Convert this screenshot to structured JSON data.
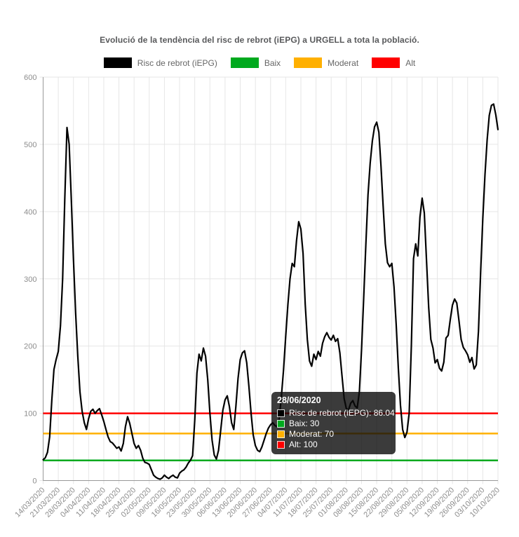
{
  "title": "Evolució de la tendència del risc de rebrot (iEPG) a URGELL a tota la població.",
  "colors": {
    "series": "#000000",
    "baix": "#00a91e",
    "moderat": "#ffb000",
    "alt": "#ff0000",
    "grid": "#e6e6e6",
    "axis": "#999999",
    "tick_text": "#8d8d8d"
  },
  "legend": {
    "items": [
      {
        "label": "Risc de rebrot (iEPG)",
        "color": "#000000"
      },
      {
        "label": "Baix",
        "color": "#00a91e"
      },
      {
        "label": "Moderat",
        "color": "#ffb000"
      },
      {
        "label": "Alt",
        "color": "#ff0000"
      }
    ]
  },
  "tooltip": {
    "title": "28/06/2020",
    "rows": [
      {
        "label": "Risc de rebrot (iEPG): 86.04",
        "color": "#000000"
      },
      {
        "label": "Baix: 30",
        "color": "#00a91e"
      },
      {
        "label": "Moderat: 70",
        "color": "#ffb000"
      },
      {
        "label": "Alt: 100",
        "color": "#ff0000"
      }
    ]
  },
  "chart_data": {
    "type": "line",
    "title": "Evolució de la tendència del risc de rebrot (iEPG) a URGELL a tota la població.",
    "xlabel": "",
    "ylabel": "",
    "ylim": [
      0,
      600
    ],
    "y_ticks": [
      0,
      100,
      200,
      300,
      400,
      500,
      600
    ],
    "grid": true,
    "legend_position": "top",
    "x_tick_labels": [
      "14/03/2020",
      "21/03/2020",
      "28/03/2020",
      "04/04/2020",
      "11/04/2020",
      "18/04/2020",
      "25/04/2020",
      "02/05/2020",
      "09/05/2020",
      "16/05/2020",
      "23/05/2020",
      "30/05/2020",
      "06/06/2020",
      "13/06/2020",
      "20/06/2020",
      "27/06/2020",
      "04/07/2020",
      "11/07/2020",
      "18/07/2020",
      "25/07/2020",
      "01/08/2020",
      "08/08/2020",
      "15/08/2020",
      "22/08/2020",
      "29/08/2020",
      "05/09/2020",
      "12/09/2020",
      "19/09/2020",
      "26/09/2020",
      "03/10/2020",
      "10/10/2020"
    ],
    "highlighted_point": {
      "date": "28/06/2020",
      "value": 86.04
    },
    "series": [
      {
        "name": "Risc de rebrot (iEPG)",
        "color": "#000000",
        "interval": "daily",
        "start_date": "14/03/2020",
        "end_date": "10/10/2020",
        "values": [
          31,
          34,
          42,
          65,
          120,
          165,
          180,
          192,
          230,
          300,
          420,
          525,
          500,
          420,
          330,
          250,
          185,
          132,
          103,
          86,
          76,
          92,
          103,
          106,
          100,
          104,
          107,
          98,
          88,
          76,
          65,
          58,
          56,
          52,
          48,
          50,
          44,
          55,
          80,
          95,
          85,
          70,
          55,
          48,
          52,
          45,
          33,
          27,
          26,
          24,
          16,
          8,
          5,
          3,
          2,
          4,
          8,
          5,
          3,
          6,
          8,
          5,
          4,
          11,
          14,
          16,
          20,
          26,
          30,
          37,
          90,
          160,
          188,
          178,
          197,
          185,
          150,
          100,
          60,
          38,
          32,
          45,
          75,
          105,
          120,
          126,
          110,
          86,
          76,
          110,
          152,
          180,
          190,
          193,
          175,
          140,
          100,
          68,
          52,
          45,
          43,
          50,
          60,
          70,
          78,
          83,
          86.04,
          82,
          80,
          92,
          125,
          165,
          215,
          262,
          300,
          323,
          318,
          357,
          385,
          374,
          338,
          262,
          210,
          178,
          170,
          188,
          180,
          192,
          185,
          204,
          214,
          220,
          213,
          209,
          216,
          207,
          211,
          190,
          155,
          122,
          107,
          105,
          115,
          119,
          111,
          108,
          132,
          195,
          270,
          350,
          425,
          472,
          505,
          526,
          533,
          518,
          468,
          408,
          352,
          324,
          318,
          323,
          288,
          232,
          168,
          112,
          76,
          64,
          72,
          100,
          200,
          330,
          352,
          334,
          392,
          420,
          398,
          328,
          258,
          210,
          197,
          175,
          180,
          167,
          163,
          176,
          212,
          216,
          240,
          261,
          270,
          264,
          238,
          210,
          198,
          193,
          187,
          176,
          183,
          166,
          172,
          222,
          310,
          390,
          455,
          507,
          543,
          558,
          560,
          544,
          522
        ]
      },
      {
        "name": "Baix",
        "color": "#00a91e",
        "constant": 30
      },
      {
        "name": "Moderat",
        "color": "#ffb000",
        "constant": 70
      },
      {
        "name": "Alt",
        "color": "#ff0000",
        "constant": 100
      }
    ]
  }
}
